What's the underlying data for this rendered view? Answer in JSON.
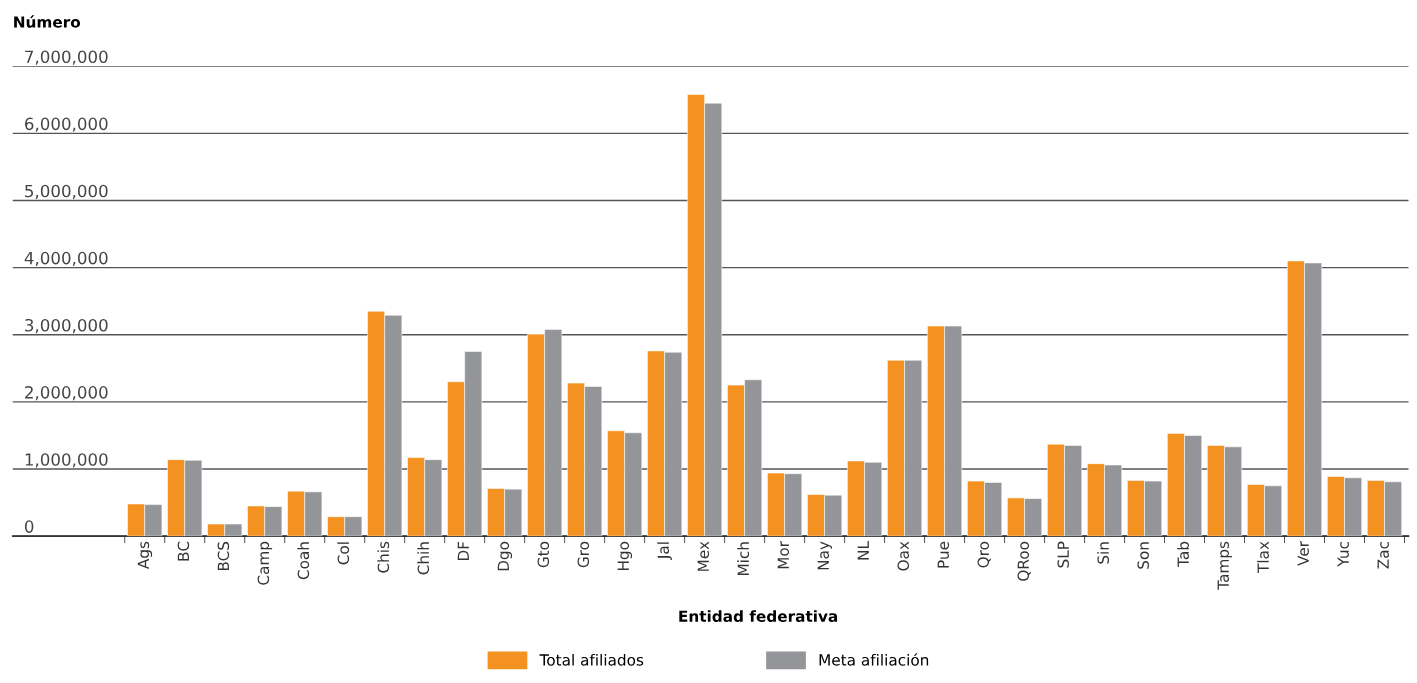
{
  "chart_data": {
    "type": "bar",
    "ylabel": "Número",
    "xlabel": "Entidad federativa",
    "categories": [
      "Ags",
      "BC",
      "BCS",
      "Camp",
      "Coah",
      "Col",
      "Chis",
      "Chih",
      "DF",
      "Dgo",
      "Gto",
      "Gro",
      "Hgo",
      "Jal",
      "Mex",
      "Mich",
      "Mor",
      "Nay",
      "NL",
      "Oax",
      "Pue",
      "Qro",
      "QRoo",
      "SLP",
      "Sin",
      "Son",
      "Tab",
      "Tamps",
      "Tlax",
      "Ver",
      "Yuc",
      "Zac"
    ],
    "series": [
      {
        "name": "Total afiliados",
        "color": "#f39220",
        "values": [
          480000,
          1140000,
          180000,
          450000,
          670000,
          290000,
          3350000,
          1170000,
          2300000,
          710000,
          3010000,
          2280000,
          1570000,
          2760000,
          6580000,
          2250000,
          940000,
          620000,
          1120000,
          2620000,
          3130000,
          820000,
          570000,
          1370000,
          1080000,
          830000,
          1530000,
          1350000,
          770000,
          4100000,
          890000,
          830000
        ]
      },
      {
        "name": "Meta afiliación",
        "color": "#939598",
        "values": [
          470000,
          1130000,
          180000,
          440000,
          660000,
          290000,
          3290000,
          1140000,
          2750000,
          700000,
          3080000,
          2230000,
          1540000,
          2740000,
          6450000,
          2330000,
          930000,
          610000,
          1100000,
          2620000,
          3130000,
          800000,
          560000,
          1350000,
          1060000,
          820000,
          1500000,
          1330000,
          750000,
          4070000,
          870000,
          810000
        ]
      }
    ],
    "ylim": [
      0,
      7000000
    ],
    "yticks": [
      {
        "value": 0,
        "label": "0"
      },
      {
        "value": 1000000,
        "label": "1,000,000"
      },
      {
        "value": 2000000,
        "label": "2,000,000"
      },
      {
        "value": 3000000,
        "label": "3,000,000"
      },
      {
        "value": 4000000,
        "label": "4,000,000"
      },
      {
        "value": 5000000,
        "label": "5,000,000"
      },
      {
        "value": 6000000,
        "label": "6,000,000"
      },
      {
        "value": 7000000,
        "label": "7,000,000"
      }
    ],
    "grid": "y",
    "legend": "bottom"
  }
}
